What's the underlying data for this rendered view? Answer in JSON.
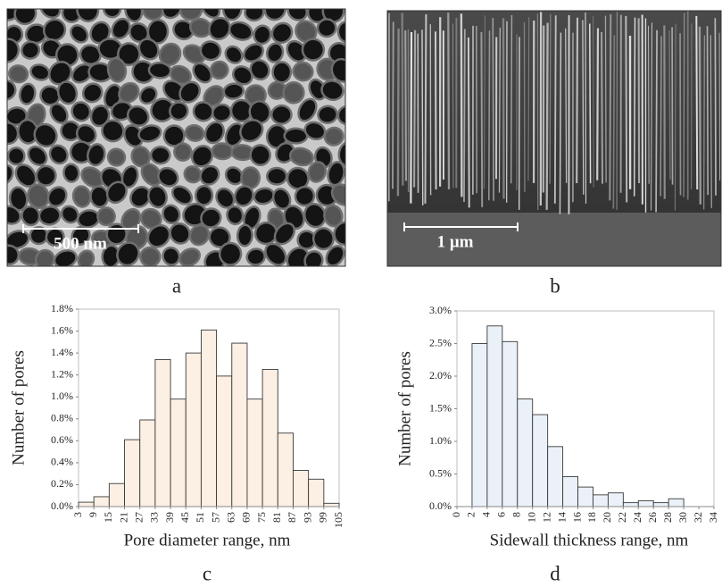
{
  "images": [
    {
      "scale_label": "500 nm",
      "panel_label": "a"
    },
    {
      "scale_label": "1 μm",
      "panel_label": "b"
    }
  ],
  "chart_data": [
    {
      "type": "histogram",
      "panel_label": "c",
      "x_label": "Pore diameter range, nm",
      "y_label": "Number of pores",
      "bins": [
        3,
        9,
        15,
        21,
        27,
        33,
        39,
        45,
        51,
        57,
        63,
        69,
        75,
        81,
        87,
        93,
        99,
        105
      ],
      "values": [
        0.04,
        0.09,
        0.21,
        0.61,
        0.79,
        1.34,
        0.98,
        1.4,
        1.61,
        1.19,
        1.49,
        0.98,
        1.25,
        0.67,
        0.33,
        0.25,
        0.03
      ],
      "color": "#fcefe3",
      "xlim": [
        3,
        105
      ],
      "ylim": [
        0,
        1.8
      ],
      "yticks": [
        {
          "value": 0,
          "label": "0.0%"
        },
        {
          "value": 0.2,
          "label": "0.2%"
        },
        {
          "value": 0.4,
          "label": "0.4%"
        },
        {
          "value": 0.6,
          "label": "0.6%"
        },
        {
          "value": 0.8,
          "label": "0.8%"
        },
        {
          "value": 1.0,
          "label": "1.0%"
        },
        {
          "value": 1.2,
          "label": "1.2%"
        },
        {
          "value": 1.4,
          "label": "1.4%"
        },
        {
          "value": 1.6,
          "label": "1.6%"
        },
        {
          "value": 1.8,
          "label": "1.8%"
        }
      ]
    },
    {
      "type": "histogram",
      "panel_label": "d",
      "x_label": "Sidewall thickness range, nm",
      "y_label": "Number of pores",
      "bins": [
        0,
        2,
        4,
        6,
        8,
        10,
        12,
        14,
        16,
        18,
        20,
        22,
        24,
        26,
        28,
        30,
        32,
        34
      ],
      "values": [
        0,
        2.5,
        2.77,
        2.53,
        1.65,
        1.41,
        0.92,
        0.46,
        0.3,
        0.18,
        0.21,
        0.06,
        0.09,
        0.06,
        0.12,
        0,
        0
      ],
      "color": "#eaf1f8",
      "xlim": [
        0,
        34
      ],
      "ylim": [
        0,
        3.0
      ],
      "yticks": [
        {
          "value": 0,
          "label": "0.0%"
        },
        {
          "value": 0.5,
          "label": "0.5%"
        },
        {
          "value": 1.0,
          "label": "1.0%"
        },
        {
          "value": 1.5,
          "label": "1.5%"
        },
        {
          "value": 2.0,
          "label": "2.0%"
        },
        {
          "value": 2.5,
          "label": "2.5%"
        },
        {
          "value": 3.0,
          "label": "3.0%"
        }
      ]
    }
  ]
}
